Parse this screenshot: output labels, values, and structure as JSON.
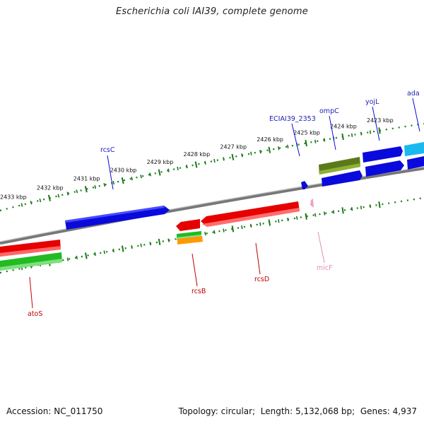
{
  "title": "Escherichia coli IAI39, complete genome",
  "footer": {
    "accession_label": "Accession:",
    "accession": "NC_011750",
    "topology_label": "Topology:",
    "topology": "circular",
    "length_label": "Length:",
    "length": "5,132,068 bp",
    "genes_label": "Genes:",
    "genes": "4,937"
  },
  "ruler": {
    "ticks": [
      "2423 kbp",
      "2424 kbp",
      "2425 kbp",
      "2426 kbp",
      "2427 kbp",
      "2428 kbp",
      "2429 kbp",
      "2430 kbp",
      "2431 kbp",
      "2432 kbp",
      "2433 kbp"
    ]
  },
  "colors": {
    "backbone": "#8a8a8a",
    "ruler_dots": "#1a7a1a",
    "blue": "#0a0adc",
    "red": "#e60000",
    "green": "#22bb22",
    "olive": "#5a7a1a",
    "cyan": "#1ab8f0",
    "orange": "#ff9900",
    "pink": "#f0a0c8",
    "label_blue": "#1f1fb3",
    "label_red": "#c00000",
    "label_pink": "#e88ab8"
  },
  "labels": {
    "rcsC": "rcsC",
    "ECIAI39_2353": "ECIAI39_2353",
    "ompC": "ompC",
    "yojL": "yojL",
    "ada": "ada",
    "atoS": "atoS",
    "rcsB": "rcsB",
    "rcsD": "rcsD",
    "micF": "micF"
  }
}
